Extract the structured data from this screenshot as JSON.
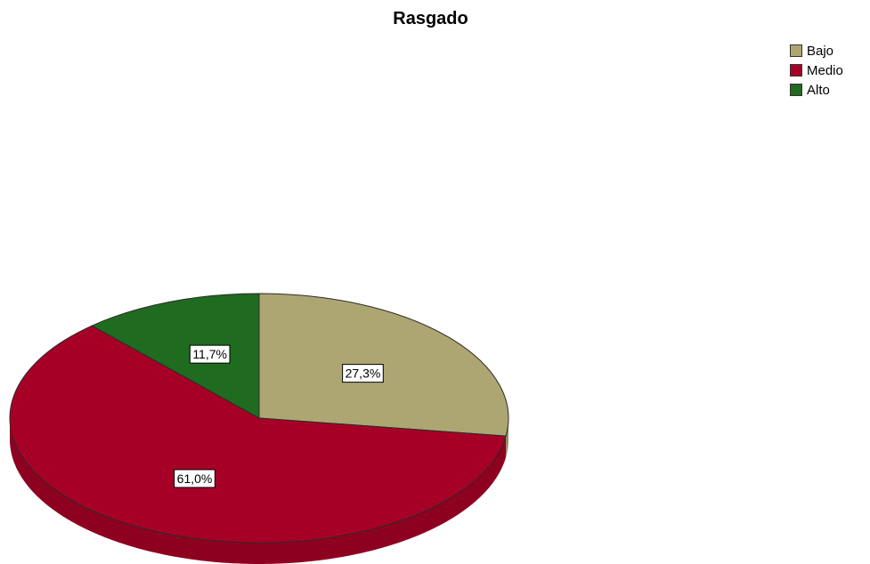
{
  "chart_data": {
    "type": "pie",
    "title": "Rasgado",
    "legend_position": "top-right",
    "three_d": true,
    "slices": [
      {
        "label": "Bajo",
        "value": 27.3,
        "value_label": "27,3%",
        "color": "#ada672"
      },
      {
        "label": "Medio",
        "value": 61.0,
        "value_label": "61,0%",
        "color": "#a70026"
      },
      {
        "label": "Alto",
        "value": 11.7,
        "value_label": "11,7%",
        "color": "#1f6b1f"
      }
    ]
  }
}
